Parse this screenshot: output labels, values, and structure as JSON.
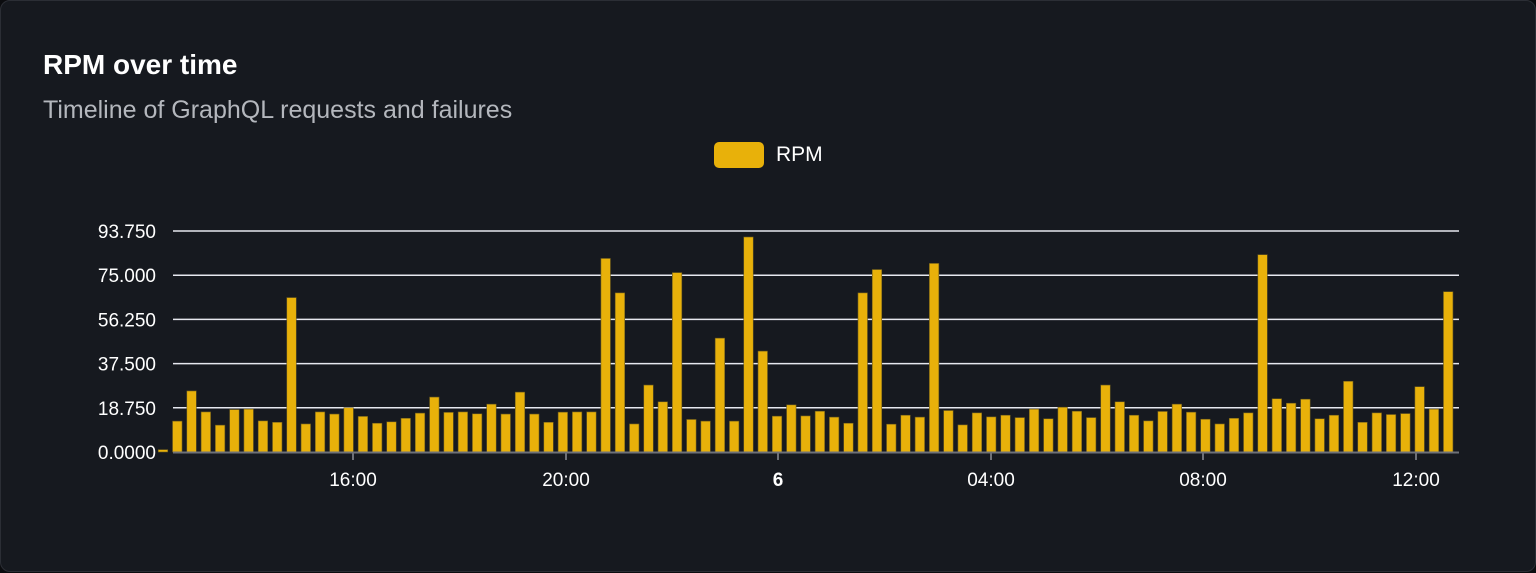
{
  "card": {
    "title": "RPM over time",
    "subtitle": "Timeline of GraphQL requests and failures"
  },
  "colors": {
    "bar": "#e8b10a",
    "grid": "#e6e8ef",
    "background": "#16191f",
    "text": "#ffffff"
  },
  "chart_data": {
    "type": "bar",
    "title": "RPM over time",
    "subtitle": "Timeline of GraphQL requests and failures",
    "legend": {
      "position": "top-center",
      "entries": [
        "RPM"
      ]
    },
    "series": [
      {
        "name": "RPM",
        "values": [
          1,
          13.1,
          25.9,
          17.0,
          11.4,
          18.0,
          18.2,
          13.2,
          12.6,
          65.5,
          11.9,
          17.0,
          16.1,
          18.8,
          15.1,
          12.2,
          12.8,
          14.3,
          16.5,
          23.3,
          16.8,
          17.0,
          16.2,
          20.3,
          16.1,
          25.4,
          16.1,
          12.6,
          16.9,
          17.0,
          17.0,
          82.1,
          67.5,
          11.9,
          28.4,
          21.3,
          76.1,
          13.8,
          13.1,
          48.3,
          13.1,
          91.2,
          42.8,
          15.2,
          20.0,
          15.3,
          17.3,
          14.8,
          12.2,
          67.5,
          77.4,
          11.8,
          15.6,
          14.8,
          80.0,
          17.6,
          11.5,
          16.6,
          14.9,
          15.6,
          14.6,
          18.2,
          14.1,
          19.0,
          17.3,
          14.6,
          28.4,
          21.3,
          15.6,
          13.2,
          17.2,
          20.3,
          16.9,
          13.9,
          11.9,
          14.3,
          16.6,
          83.7,
          22.6,
          20.7,
          22.4,
          14.1,
          15.6,
          30.0,
          12.6,
          16.6,
          15.9,
          16.3,
          27.7,
          18.2,
          68.0
        ]
      }
    ],
    "x_tick_labels": [
      "16:00",
      "20:00",
      "6",
      "04:00",
      "08:00",
      "12:00"
    ],
    "y_tick_labels": [
      "0.0000",
      "18.750",
      "37.500",
      "56.250",
      "75.000",
      "93.750"
    ],
    "ylim": [
      0,
      93.75
    ],
    "grid": true
  }
}
